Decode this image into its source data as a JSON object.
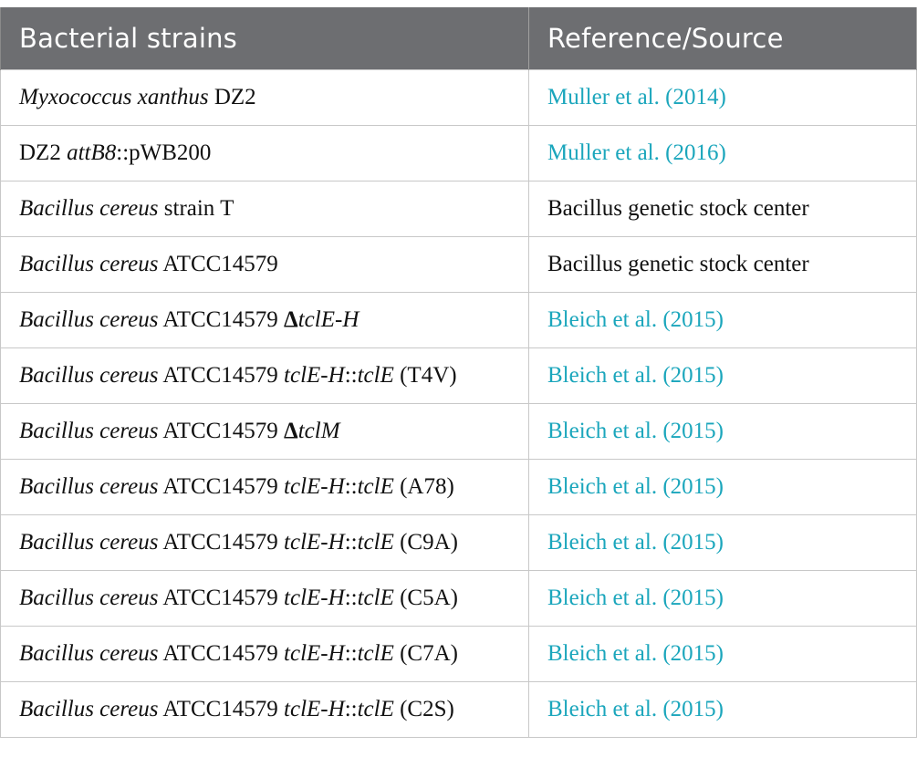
{
  "table": {
    "headers": [
      "Bacterial strains",
      "Reference/Source"
    ],
    "rows": [
      {
        "strain": {
          "italic": "Myxococcus xanthus",
          "rest": " DZ2"
        },
        "reference": "Muller et al. (2014)",
        "reference_is_link": true
      },
      {
        "strain": {
          "prefix": "DZ2 ",
          "italic": "attB8",
          "rest": "::pWB200"
        },
        "reference": "Muller et al. (2016)",
        "reference_is_link": true
      },
      {
        "strain": {
          "italic": "Bacillus cereus",
          "rest": " strain T"
        },
        "reference": "Bacillus genetic stock center",
        "reference_is_link": false
      },
      {
        "strain": {
          "italic": "Bacillus cereus",
          "rest": " ATCC14579"
        },
        "reference": "Bacillus genetic stock center",
        "reference_is_link": false
      },
      {
        "strain": {
          "italic": "Bacillus cereus",
          "rest": " ATCC14579 ",
          "delta": "Δ",
          "italic2": "tclE-H"
        },
        "reference": "Bleich et al. (2015)",
        "reference_is_link": true
      },
      {
        "strain": {
          "italic": "Bacillus cereus",
          "rest": " ATCC14579 ",
          "italic2": "tclE-H",
          "sep": "::",
          "italic3": "tclE",
          "suffix": " (T4V)"
        },
        "reference": "Bleich et al. (2015)",
        "reference_is_link": true
      },
      {
        "strain": {
          "italic": "Bacillus cereus",
          "rest": " ATCC14579 ",
          "delta": "Δ",
          "italic2": "tclM"
        },
        "reference": "Bleich et al. (2015)",
        "reference_is_link": true
      },
      {
        "strain": {
          "italic": "Bacillus cereus",
          "rest": " ATCC14579 ",
          "italic2": "tclE-H",
          "sep": "::",
          "italic3": "tclE",
          "suffix": " (A78)"
        },
        "reference": "Bleich et al. (2015)",
        "reference_is_link": true
      },
      {
        "strain": {
          "italic": "Bacillus cereus",
          "rest": " ATCC14579 ",
          "italic2": "tclE-H",
          "sep": "::",
          "italic3": "tclE",
          "suffix": " (C9A)"
        },
        "reference": "Bleich et al. (2015)",
        "reference_is_link": true
      },
      {
        "strain": {
          "italic": "Bacillus cereus",
          "rest": " ATCC14579 ",
          "italic2": "tclE-H",
          "sep": "::",
          "italic3": "tclE",
          "suffix": " (C5A)"
        },
        "reference": "Bleich et al. (2015)",
        "reference_is_link": true
      },
      {
        "strain": {
          "italic": "Bacillus cereus",
          "rest": " ATCC14579 ",
          "italic2": "tclE-H",
          "sep": "::",
          "italic3": "tclE",
          "suffix": " (C7A)"
        },
        "reference": "Bleich et al. (2015)",
        "reference_is_link": true
      },
      {
        "strain": {
          "italic": "Bacillus cereus",
          "rest": " ATCC14579 ",
          "italic2": "tclE-H",
          "sep": "::",
          "italic3": "tclE",
          "suffix": " (C2S)"
        },
        "reference": "Bleich et al. (2015)",
        "reference_is_link": true
      }
    ],
    "colors": {
      "header_bg": "#6d6e71",
      "header_text": "#ffffff",
      "link": "#1ba6bc",
      "border": "#c8c8c8"
    }
  }
}
